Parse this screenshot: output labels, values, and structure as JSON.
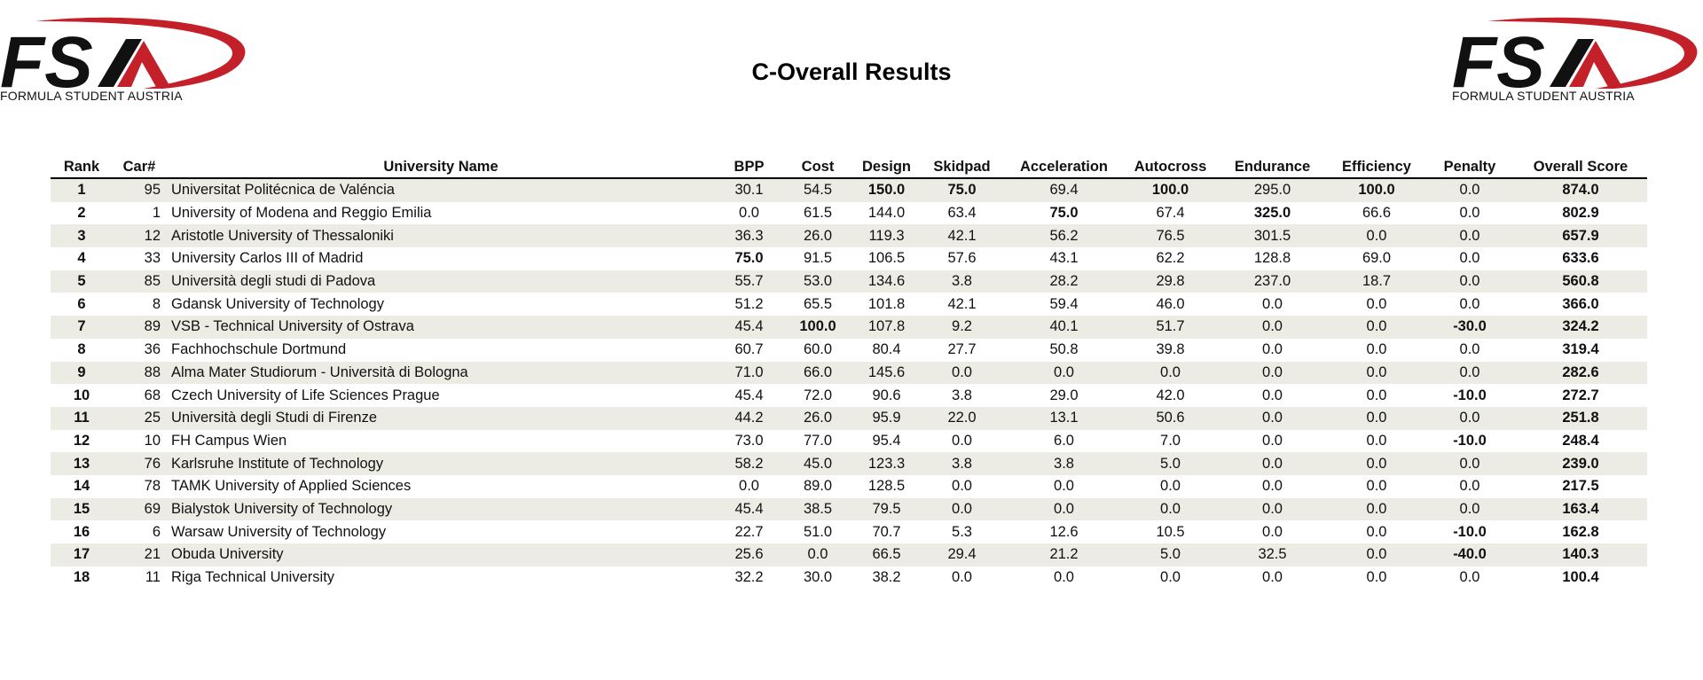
{
  "header": {
    "title": "C-Overall Results",
    "logo_text": "FSA",
    "logo_caption": "FORMULA STUDENT AUSTRIA"
  },
  "colors": {
    "logo_red": "#c4202a",
    "logo_black": "#111111",
    "row_stripe": "#ecece4"
  },
  "table": {
    "columns": [
      "Rank",
      "Car#",
      "University Name",
      "BPP",
      "Cost",
      "Design",
      "Skidpad",
      "Acceleration",
      "Autocross",
      "Endurance",
      "Efficiency",
      "Penalty",
      "Overall Score"
    ],
    "rows": [
      {
        "rank": "1",
        "car": "95",
        "university": "Universitat Politécnica de Valéncia",
        "bpp": "30.1",
        "cost": "54.5",
        "design": "150.0",
        "skidpad": "75.0",
        "acceleration": "69.4",
        "autocross": "100.0",
        "endurance": "295.0",
        "efficiency": "100.0",
        "penalty": "0.0",
        "overall": "874.0",
        "bold": [
          "design",
          "skidpad",
          "autocross",
          "efficiency"
        ]
      },
      {
        "rank": "2",
        "car": "1",
        "university": "University of Modena and Reggio Emilia",
        "bpp": "0.0",
        "cost": "61.5",
        "design": "144.0",
        "skidpad": "63.4",
        "acceleration": "75.0",
        "autocross": "67.4",
        "endurance": "325.0",
        "efficiency": "66.6",
        "penalty": "0.0",
        "overall": "802.9",
        "bold": [
          "acceleration",
          "endurance"
        ]
      },
      {
        "rank": "3",
        "car": "12",
        "university": "Aristotle University of Thessaloniki",
        "bpp": "36.3",
        "cost": "26.0",
        "design": "119.3",
        "skidpad": "42.1",
        "acceleration": "56.2",
        "autocross": "76.5",
        "endurance": "301.5",
        "efficiency": "0.0",
        "penalty": "0.0",
        "overall": "657.9",
        "bold": []
      },
      {
        "rank": "4",
        "car": "33",
        "university": "University Carlos III of Madrid",
        "bpp": "75.0",
        "cost": "91.5",
        "design": "106.5",
        "skidpad": "57.6",
        "acceleration": "43.1",
        "autocross": "62.2",
        "endurance": "128.8",
        "efficiency": "69.0",
        "penalty": "0.0",
        "overall": "633.6",
        "bold": [
          "bpp"
        ]
      },
      {
        "rank": "5",
        "car": "85",
        "university": "Università degli studi di Padova",
        "bpp": "55.7",
        "cost": "53.0",
        "design": "134.6",
        "skidpad": "3.8",
        "acceleration": "28.2",
        "autocross": "29.8",
        "endurance": "237.0",
        "efficiency": "18.7",
        "penalty": "0.0",
        "overall": "560.8",
        "bold": []
      },
      {
        "rank": "6",
        "car": "8",
        "university": "Gdansk University of Technology",
        "bpp": "51.2",
        "cost": "65.5",
        "design": "101.8",
        "skidpad": "42.1",
        "acceleration": "59.4",
        "autocross": "46.0",
        "endurance": "0.0",
        "efficiency": "0.0",
        "penalty": "0.0",
        "overall": "366.0",
        "bold": []
      },
      {
        "rank": "7",
        "car": "89",
        "university": "VSB - Technical University of Ostrava",
        "bpp": "45.4",
        "cost": "100.0",
        "design": "107.8",
        "skidpad": "9.2",
        "acceleration": "40.1",
        "autocross": "51.7",
        "endurance": "0.0",
        "efficiency": "0.0",
        "penalty": "-30.0",
        "overall": "324.2",
        "bold": [
          "cost",
          "penalty"
        ]
      },
      {
        "rank": "8",
        "car": "36",
        "university": "Fachhochschule Dortmund",
        "bpp": "60.7",
        "cost": "60.0",
        "design": "80.4",
        "skidpad": "27.7",
        "acceleration": "50.8",
        "autocross": "39.8",
        "endurance": "0.0",
        "efficiency": "0.0",
        "penalty": "0.0",
        "overall": "319.4",
        "bold": []
      },
      {
        "rank": "9",
        "car": "88",
        "university": "Alma Mater Studiorum - Università di Bologna",
        "bpp": "71.0",
        "cost": "66.0",
        "design": "145.6",
        "skidpad": "0.0",
        "acceleration": "0.0",
        "autocross": "0.0",
        "endurance": "0.0",
        "efficiency": "0.0",
        "penalty": "0.0",
        "overall": "282.6",
        "bold": []
      },
      {
        "rank": "10",
        "car": "68",
        "university": "Czech University of Life Sciences Prague",
        "bpp": "45.4",
        "cost": "72.0",
        "design": "90.6",
        "skidpad": "3.8",
        "acceleration": "29.0",
        "autocross": "42.0",
        "endurance": "0.0",
        "efficiency": "0.0",
        "penalty": "-10.0",
        "overall": "272.7",
        "bold": [
          "penalty"
        ]
      },
      {
        "rank": "11",
        "car": "25",
        "university": "Università degli Studi di Firenze",
        "bpp": "44.2",
        "cost": "26.0",
        "design": "95.9",
        "skidpad": "22.0",
        "acceleration": "13.1",
        "autocross": "50.6",
        "endurance": "0.0",
        "efficiency": "0.0",
        "penalty": "0.0",
        "overall": "251.8",
        "bold": []
      },
      {
        "rank": "12",
        "car": "10",
        "university": "FH Campus Wien",
        "bpp": "73.0",
        "cost": "77.0",
        "design": "95.4",
        "skidpad": "0.0",
        "acceleration": "6.0",
        "autocross": "7.0",
        "endurance": "0.0",
        "efficiency": "0.0",
        "penalty": "-10.0",
        "overall": "248.4",
        "bold": [
          "penalty"
        ]
      },
      {
        "rank": "13",
        "car": "76",
        "university": "Karlsruhe Institute of Technology",
        "bpp": "58.2",
        "cost": "45.0",
        "design": "123.3",
        "skidpad": "3.8",
        "acceleration": "3.8",
        "autocross": "5.0",
        "endurance": "0.0",
        "efficiency": "0.0",
        "penalty": "0.0",
        "overall": "239.0",
        "bold": []
      },
      {
        "rank": "14",
        "car": "78",
        "university": "TAMK University of Applied Sciences",
        "bpp": "0.0",
        "cost": "89.0",
        "design": "128.5",
        "skidpad": "0.0",
        "acceleration": "0.0",
        "autocross": "0.0",
        "endurance": "0.0",
        "efficiency": "0.0",
        "penalty": "0.0",
        "overall": "217.5",
        "bold": []
      },
      {
        "rank": "15",
        "car": "69",
        "university": "Bialystok University of Technology",
        "bpp": "45.4",
        "cost": "38.5",
        "design": "79.5",
        "skidpad": "0.0",
        "acceleration": "0.0",
        "autocross": "0.0",
        "endurance": "0.0",
        "efficiency": "0.0",
        "penalty": "0.0",
        "overall": "163.4",
        "bold": []
      },
      {
        "rank": "16",
        "car": "6",
        "university": "Warsaw University of Technology",
        "bpp": "22.7",
        "cost": "51.0",
        "design": "70.7",
        "skidpad": "5.3",
        "acceleration": "12.6",
        "autocross": "10.5",
        "endurance": "0.0",
        "efficiency": "0.0",
        "penalty": "-10.0",
        "overall": "162.8",
        "bold": [
          "penalty"
        ]
      },
      {
        "rank": "17",
        "car": "21",
        "university": "Obuda University",
        "bpp": "25.6",
        "cost": "0.0",
        "design": "66.5",
        "skidpad": "29.4",
        "acceleration": "21.2",
        "autocross": "5.0",
        "endurance": "32.5",
        "efficiency": "0.0",
        "penalty": "-40.0",
        "overall": "140.3",
        "bold": [
          "penalty"
        ]
      },
      {
        "rank": "18",
        "car": "11",
        "university": "Riga Technical University",
        "bpp": "32.2",
        "cost": "30.0",
        "design": "38.2",
        "skidpad": "0.0",
        "acceleration": "0.0",
        "autocross": "0.0",
        "endurance": "0.0",
        "efficiency": "0.0",
        "penalty": "0.0",
        "overall": "100.4",
        "bold": []
      }
    ]
  }
}
